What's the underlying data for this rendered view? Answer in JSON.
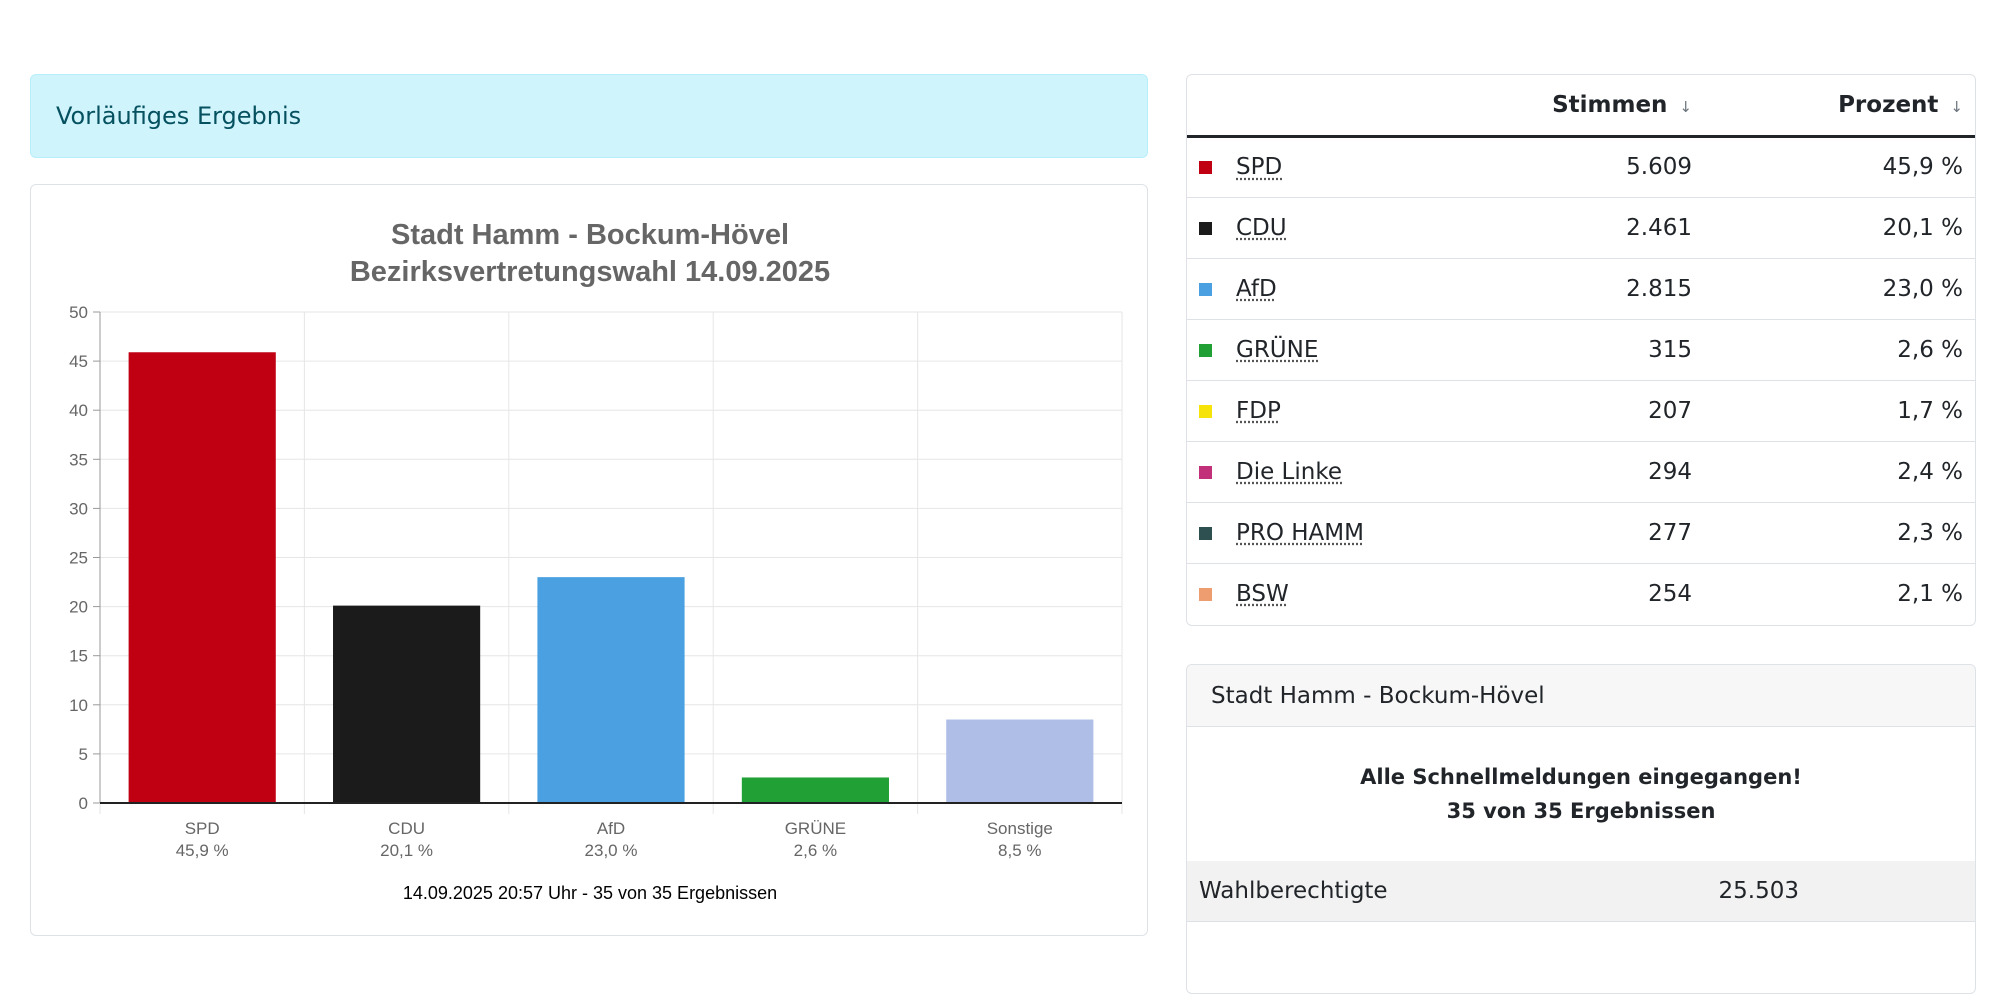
{
  "alert": {
    "text": "Vorläufiges Ergebnis"
  },
  "chart_data": {
    "type": "bar",
    "title": [
      "Stadt Hamm - Bockum-Hövel",
      "Bezirksvertretungswahl 14.09.2025"
    ],
    "categories": [
      "SPD",
      "CDU",
      "AfD",
      "GRÜNE",
      "Sonstige"
    ],
    "category_sublabels": [
      "45,9 %",
      "20,1 %",
      "23,0 %",
      "2,6 %",
      "8,5 %"
    ],
    "values": [
      45.9,
      20.1,
      23.0,
      2.6,
      8.5
    ],
    "colors": [
      "#c00012",
      "#1b1b1b",
      "#4aa0e0",
      "#21a035",
      "#aebee6"
    ],
    "yticks": [
      "0",
      "5",
      "10",
      "15",
      "20",
      "25",
      "30",
      "35",
      "40",
      "45",
      "50"
    ],
    "ylim": [
      0,
      50
    ],
    "grid": true,
    "footer": "14.09.2025 20:57 Uhr - 35 von 35 Ergebnissen",
    "xlabel": "",
    "ylabel": ""
  },
  "table": {
    "headers": {
      "party": "",
      "votes": "Stimmen",
      "percent": "Prozent"
    },
    "sort_arrow": "↓",
    "rows": [
      {
        "party": "SPD",
        "votes": "5.609",
        "percent": "45,9 %",
        "color": "#c00012"
      },
      {
        "party": "CDU",
        "votes": "2.461",
        "percent": "20,1 %",
        "color": "#1b1b1b"
      },
      {
        "party": "AfD",
        "votes": "2.815",
        "percent": "23,0 %",
        "color": "#4aa0e0"
      },
      {
        "party": "GRÜNE",
        "votes": "315",
        "percent": "2,6 %",
        "color": "#21a035"
      },
      {
        "party": "FDP",
        "votes": "207",
        "percent": "1,7 %",
        "color": "#f5e30a"
      },
      {
        "party": "Die Linke",
        "votes": "294",
        "percent": "2,4 %",
        "color": "#c2307a"
      },
      {
        "party": "PRO HAMM",
        "votes": "277",
        "percent": "2,3 %",
        "color": "#2f5050"
      },
      {
        "party": "BSW",
        "votes": "254",
        "percent": "2,1 %",
        "color": "#ee9d70"
      }
    ]
  },
  "info": {
    "header": "Stadt Hamm - Bockum-Hövel",
    "status_line1": "Alle Schnellmeldungen eingegangen!",
    "status_line2": "35 von 35 Ergebnissen",
    "rows": [
      {
        "label": "Wahlberechtigte",
        "value": "25.503"
      }
    ]
  }
}
